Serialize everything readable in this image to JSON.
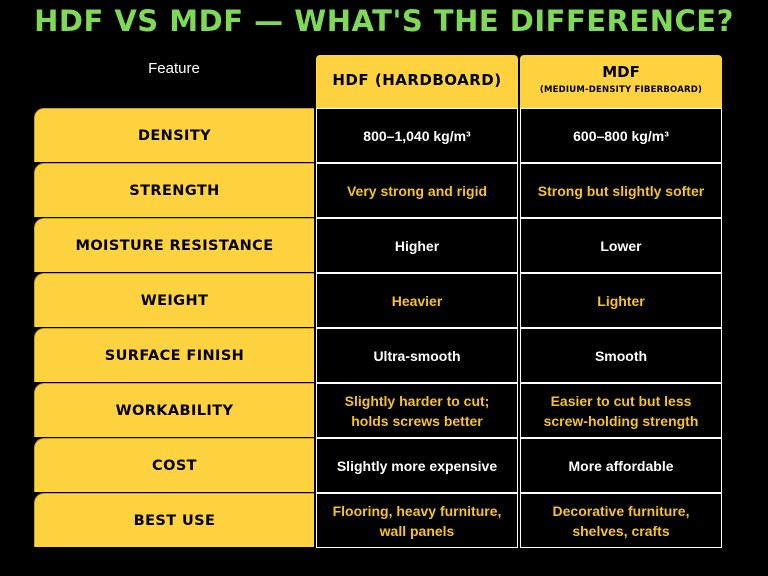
{
  "title": "HDF VS MDF — WHAT'S THE DIFFERENCE?",
  "header": {
    "feature": "Feature",
    "hdf": "HDF (HARDBOARD)",
    "mdf": "MDF",
    "mdf_sub": "(MEDIUM-DENSITY FIBERBOARD)"
  },
  "rows": [
    {
      "feature": "DENSITY",
      "hdf": "800–1,040 kg/m³",
      "mdf": "600–800 kg/m³",
      "hdf_color": "white",
      "mdf_color": "white"
    },
    {
      "feature": "STRENGTH",
      "hdf": "Very strong and rigid",
      "mdf": "Strong but slightly softer",
      "hdf_color": "gold",
      "mdf_color": "gold"
    },
    {
      "feature": "MOISTURE RESISTANCE",
      "hdf": "Higher",
      "mdf": "Lower",
      "hdf_color": "white",
      "mdf_color": "white"
    },
    {
      "feature": "WEIGHT",
      "hdf": "Heavier",
      "mdf": "Lighter",
      "hdf_color": "gold",
      "mdf_color": "gold"
    },
    {
      "feature": "SURFACE FINISH",
      "hdf": "Ultra-smooth",
      "mdf": "Smooth",
      "hdf_color": "white",
      "mdf_color": "white"
    },
    {
      "feature": "WORKABILITY",
      "hdf": "Slightly harder to cut; holds screws better",
      "mdf": "Easier to cut but less screw-holding strength",
      "hdf_color": "gold",
      "mdf_color": "gold"
    },
    {
      "feature": "COST",
      "hdf": "Slightly more expensive",
      "mdf": "More affordable",
      "hdf_color": "white",
      "mdf_color": "white"
    },
    {
      "feature": "BEST USE",
      "hdf": "Flooring, heavy furniture, wall panels",
      "mdf": "Decorative furniture, shelves, crafts",
      "hdf_color": "gold",
      "mdf_color": "gold"
    }
  ],
  "colors": {
    "title": "#7ed957",
    "accent": "#ffd23f",
    "background": "#000000",
    "gold_text": "#f4c22b"
  }
}
